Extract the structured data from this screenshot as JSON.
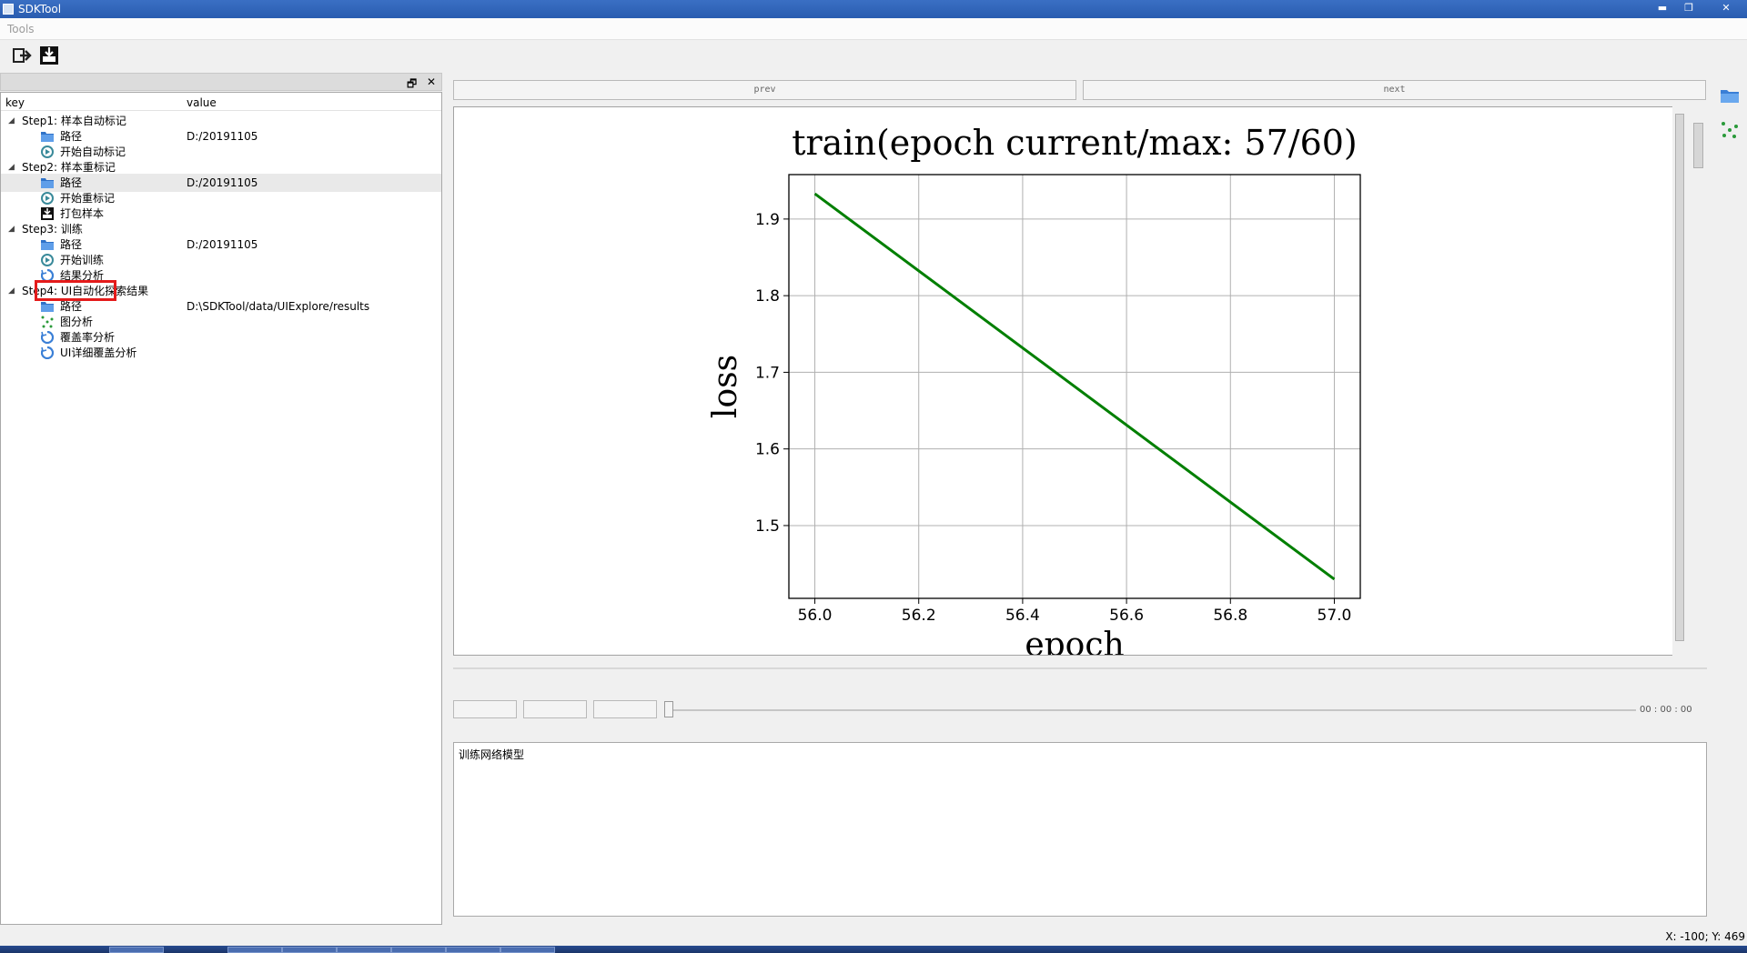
{
  "window": {
    "title": "SDKTool",
    "buttons": {
      "minimize": "▬",
      "restore": "❐",
      "close": "✕"
    }
  },
  "menu": {
    "items": [
      "Tools"
    ]
  },
  "toolbar": {
    "icons": [
      "exit-icon",
      "download-save-icon"
    ]
  },
  "dock": {
    "float_glyph": "🗗",
    "close_glyph": "✕"
  },
  "tree": {
    "headers": {
      "key": "key",
      "value": "value"
    },
    "rows": [
      {
        "key": "Step1: 样本自动标记",
        "value": "",
        "level": 0,
        "icon": "none"
      },
      {
        "key": "路径",
        "value": "D:/20191105",
        "level": 1,
        "icon": "folder-icon"
      },
      {
        "key": "开始自动标记",
        "value": "",
        "level": 1,
        "icon": "start-icon"
      },
      {
        "key": "Step2: 样本重标记",
        "value": "",
        "level": 0,
        "icon": "none"
      },
      {
        "key": "路径",
        "value": "D:/20191105",
        "level": 1,
        "icon": "folder-icon"
      },
      {
        "key": "开始重标记",
        "value": "",
        "level": 1,
        "icon": "start-icon"
      },
      {
        "key": "打包样本",
        "value": "",
        "level": 1,
        "icon": "package-icon"
      },
      {
        "key": "Step3: 训练",
        "value": "",
        "level": 0,
        "icon": "none"
      },
      {
        "key": "路径",
        "value": "D:/20191105",
        "level": 1,
        "icon": "folder-icon"
      },
      {
        "key": "开始训练",
        "value": "",
        "level": 1,
        "icon": "start-icon"
      },
      {
        "key": "结果分析",
        "value": "",
        "level": 1,
        "icon": "analysis-icon"
      },
      {
        "key": "Step4: UI自动化探索结果",
        "value": "",
        "level": 0,
        "icon": "none"
      },
      {
        "key": "路径",
        "value": "D:\\SDKTool/data/UIExplore/results",
        "level": 1,
        "icon": "folder-icon"
      },
      {
        "key": "图分析",
        "value": "",
        "level": 1,
        "icon": "graph-icon"
      },
      {
        "key": "覆盖率分析",
        "value": "",
        "level": 1,
        "icon": "analysis-icon"
      },
      {
        "key": "UI详细覆盖分析",
        "value": "",
        "level": 1,
        "icon": "analysis-icon"
      }
    ],
    "selected_index": 4,
    "highlighted_index": 9
  },
  "nav": {
    "prev": "prev",
    "next": "next"
  },
  "chart_data": {
    "type": "line",
    "title": "train(epoch current/max: 57/60)",
    "xlabel": "epoch",
    "ylabel": "loss",
    "x": [
      56.0,
      57.0
    ],
    "series": [
      {
        "values": [
          1.933,
          1.43
        ],
        "color": "#007f00"
      }
    ],
    "xlim": [
      55.95,
      57.05
    ],
    "ylim": [
      1.405,
      1.958
    ],
    "xticks": [
      56.0,
      56.2,
      56.4,
      56.6,
      56.8,
      57.0
    ],
    "xtick_labels": [
      "56.0",
      "56.2",
      "56.4",
      "56.6",
      "56.8",
      "57.0"
    ],
    "yticks": [
      1.5,
      1.6,
      1.7,
      1.8,
      1.9
    ],
    "ytick_labels": [
      "1.5",
      "1.6",
      "1.7",
      "1.8",
      "1.9"
    ],
    "grid": true
  },
  "player": {
    "time": "00 : 00 : 00"
  },
  "log": {
    "text": "训练网络模型"
  },
  "status": {
    "coords": "X: -100; Y: 469"
  }
}
